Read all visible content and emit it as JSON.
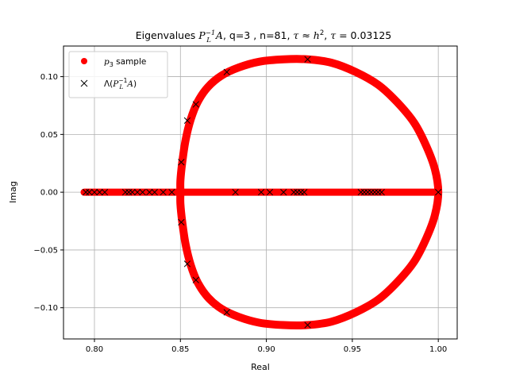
{
  "chart_data": {
    "type": "scatter",
    "title": "Eigenvalues P_L^{-1}A, q=3 , n=81, τ≈h², τ=0.03125",
    "title_parts": {
      "prefix": "Eigenvalues ",
      "op_P": "P",
      "op_sub": "L",
      "op_sup": "−1",
      "op_A": "A",
      "middle": ", q=3 , n=81, ",
      "tau1": "τ",
      "approx": " ≈ ",
      "h": "h",
      "h_sup": "2",
      "sep": ", ",
      "tau2": "τ",
      "equals": " = 0.03125"
    },
    "xlabel": "Real",
    "ylabel": "Imag",
    "xlim": [
      0.782,
      1.011
    ],
    "ylim": [
      -0.127,
      0.1265
    ],
    "grid": true,
    "xticks": [
      0.8,
      0.85,
      0.9,
      0.95,
      1.0
    ],
    "xtick_labels": [
      "0.80",
      "0.85",
      "0.90",
      "0.95",
      "1.00"
    ],
    "yticks": [
      -0.1,
      -0.05,
      0.0,
      0.05,
      0.1
    ],
    "ytick_labels": [
      "−0.10",
      "−0.05",
      "0.00",
      "0.05",
      "0.10"
    ],
    "legend": {
      "position": "top-left",
      "entries": [
        {
          "label_var": "p",
          "label_sub": "3",
          "label_rest": " sample",
          "marker": "circle",
          "color": "#ff0000"
        },
        {
          "label_prefix": "Λ(",
          "label_P": "P",
          "label_sub": "L",
          "label_sup": "−1",
          "label_A": "A",
          "label_suffix": ")",
          "marker": "x",
          "color": "#000000"
        }
      ]
    },
    "series": [
      {
        "marker": "circle",
        "color": "#ff0000",
        "components": {
          "real_axis_segment": {
            "x_range": [
              0.794,
              1.0
            ],
            "y": 0
          },
          "closed_curve": [
            [
              0.85,
              0.0
            ],
            [
              0.85,
              0.01
            ],
            [
              0.851,
              0.025
            ],
            [
              0.853,
              0.045
            ],
            [
              0.856,
              0.063
            ],
            [
              0.86,
              0.078
            ],
            [
              0.866,
              0.091
            ],
            [
              0.874,
              0.101
            ],
            [
              0.884,
              0.108
            ],
            [
              0.896,
              0.113
            ],
            [
              0.91,
              0.115
            ],
            [
              0.924,
              0.115
            ],
            [
              0.938,
              0.112
            ],
            [
              0.952,
              0.104
            ],
            [
              0.965,
              0.093
            ],
            [
              0.976,
              0.078
            ],
            [
              0.986,
              0.06
            ],
            [
              0.993,
              0.04
            ],
            [
              0.998,
              0.02
            ],
            [
              1.0,
              0.0
            ],
            [
              0.998,
              -0.02
            ],
            [
              0.993,
              -0.04
            ],
            [
              0.986,
              -0.06
            ],
            [
              0.976,
              -0.078
            ],
            [
              0.965,
              -0.093
            ],
            [
              0.952,
              -0.104
            ],
            [
              0.938,
              -0.112
            ],
            [
              0.924,
              -0.115
            ],
            [
              0.91,
              -0.115
            ],
            [
              0.896,
              -0.113
            ],
            [
              0.884,
              -0.108
            ],
            [
              0.874,
              -0.101
            ],
            [
              0.866,
              -0.091
            ],
            [
              0.86,
              -0.078
            ],
            [
              0.856,
              -0.063
            ],
            [
              0.853,
              -0.045
            ],
            [
              0.851,
              -0.025
            ],
            [
              0.85,
              -0.01
            ],
            [
              0.85,
              0.0
            ]
          ]
        }
      },
      {
        "marker": "x",
        "color": "#000000",
        "points": [
          [
            0.795,
            0
          ],
          [
            0.797,
            0
          ],
          [
            0.8,
            0
          ],
          [
            0.803,
            0
          ],
          [
            0.806,
            0
          ],
          [
            0.818,
            0
          ],
          [
            0.82,
            0
          ],
          [
            0.822,
            0
          ],
          [
            0.825,
            0
          ],
          [
            0.828,
            0
          ],
          [
            0.832,
            0
          ],
          [
            0.835,
            0
          ],
          [
            0.84,
            0
          ],
          [
            0.845,
            0
          ],
          [
            0.882,
            0
          ],
          [
            0.897,
            0
          ],
          [
            0.902,
            0
          ],
          [
            0.91,
            0
          ],
          [
            0.916,
            0
          ],
          [
            0.918,
            0
          ],
          [
            0.92,
            0
          ],
          [
            0.922,
            0
          ],
          [
            0.955,
            0
          ],
          [
            0.957,
            0
          ],
          [
            0.959,
            0
          ],
          [
            0.961,
            0
          ],
          [
            0.963,
            0
          ],
          [
            0.965,
            0
          ],
          [
            0.967,
            0
          ],
          [
            1.0,
            0
          ],
          [
            0.8505,
            0.026
          ],
          [
            0.8505,
            -0.026
          ],
          [
            0.854,
            0.062
          ],
          [
            0.854,
            -0.062
          ],
          [
            0.859,
            0.076
          ],
          [
            0.859,
            -0.076
          ],
          [
            0.877,
            0.104
          ],
          [
            0.877,
            -0.104
          ],
          [
            0.924,
            0.115
          ],
          [
            0.924,
            -0.115
          ]
        ]
      }
    ]
  }
}
